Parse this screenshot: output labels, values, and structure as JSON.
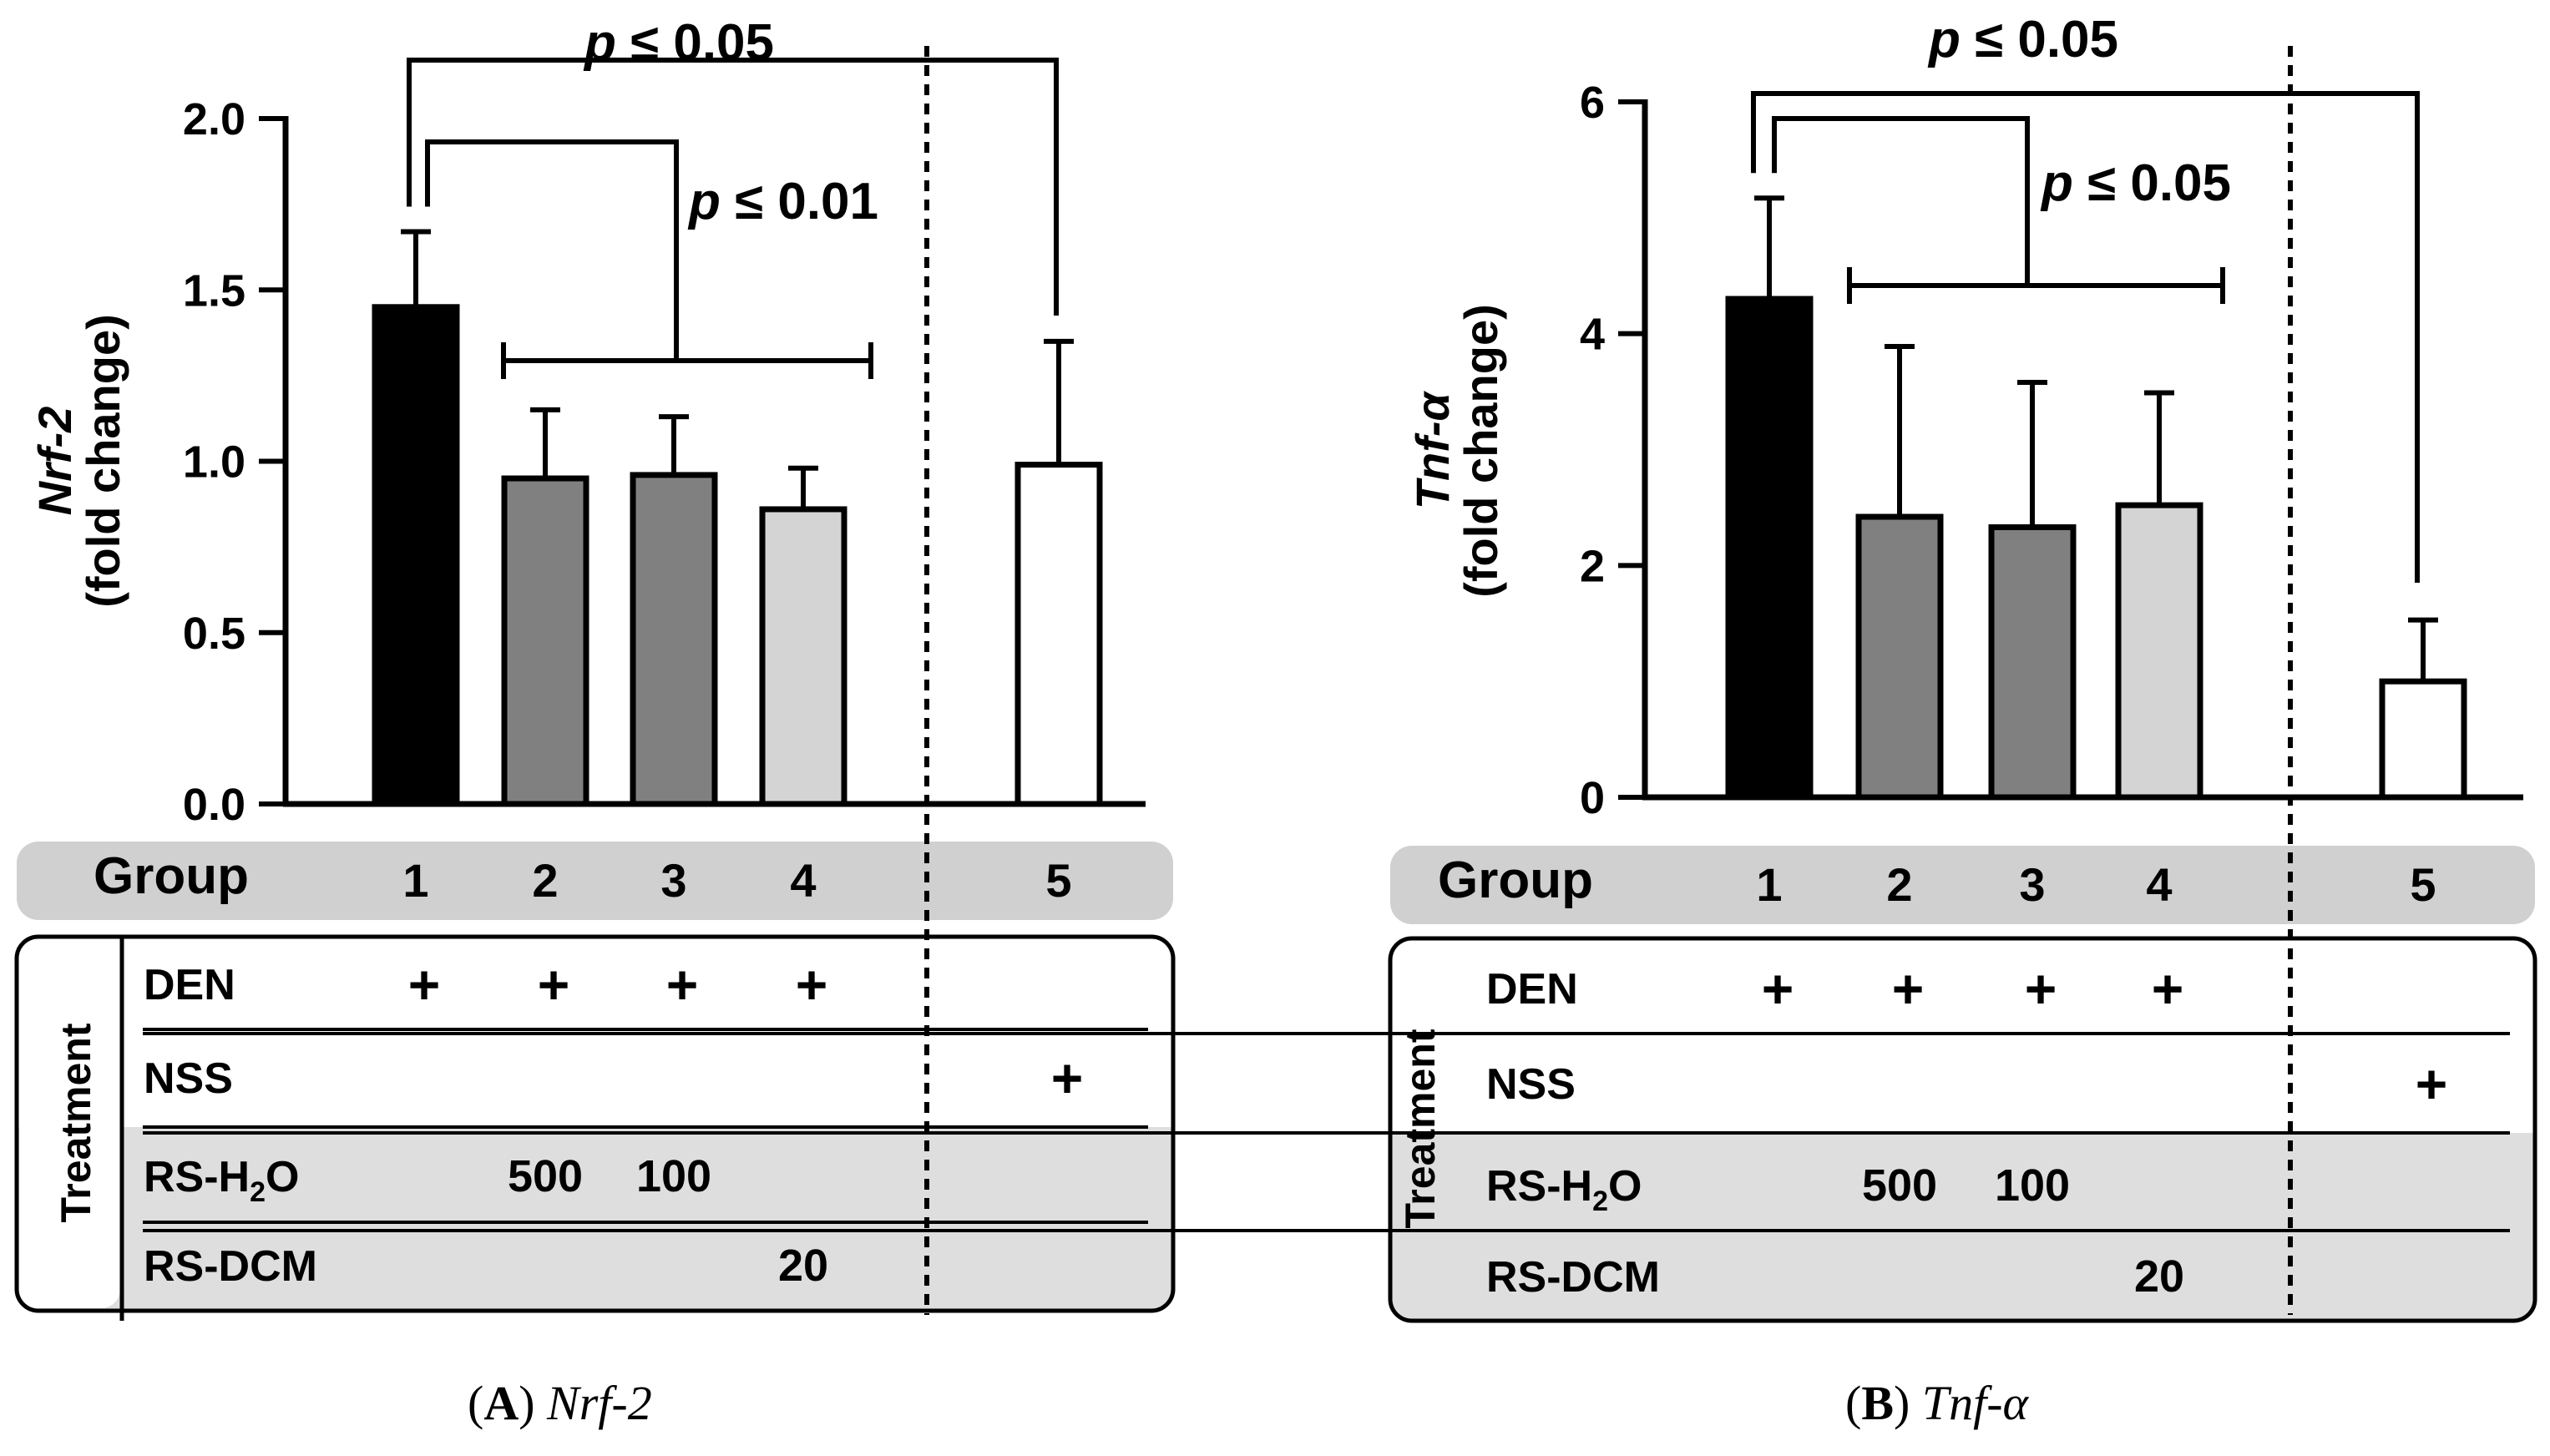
{
  "chart_data": [
    {
      "type": "bar",
      "panel_id": "A",
      "caption_label": "(A)",
      "caption_gene": "Nrf-2",
      "ylabel_gene": "Nrf-2",
      "ylabel_unit": "(fold change)",
      "ylim": [
        0,
        2.0
      ],
      "yticks": [
        0.0,
        0.5,
        1.0,
        1.5,
        2.0
      ],
      "ytick_labels": [
        "0.0",
        "0.5",
        "1.0",
        "1.5",
        "2.0"
      ],
      "categories": [
        "1",
        "2",
        "3",
        "4",
        "5"
      ],
      "values": [
        1.45,
        0.95,
        0.96,
        0.86,
        0.99
      ],
      "errors": [
        0.22,
        0.2,
        0.17,
        0.12,
        0.36
      ],
      "fill_colors": [
        "#000000",
        "#808080",
        "#808080",
        "#d4d4d4",
        "#ffffff"
      ],
      "group_label": "Group",
      "treatment_label": "Treatment",
      "row_labels": [
        "DEN",
        "NSS",
        "RS-H",
        "RS-DCM"
      ],
      "rsh_subscript": "2",
      "rsh_suffix": "O",
      "den_marks": [
        "+",
        "+",
        "+",
        "+",
        ""
      ],
      "nss_marks": [
        "",
        "",
        "",
        "",
        "+"
      ],
      "rsh2o_values": [
        "",
        "500",
        "100",
        "",
        ""
      ],
      "rsdcm_values": [
        "",
        "",
        "",
        "20",
        ""
      ],
      "annotations": [
        {
          "p": "p",
          "text": " ≤ 0.05",
          "between": "1 vs 5"
        },
        {
          "p": "p",
          "text": " ≤ 0.01",
          "between": "1 vs 2–4"
        }
      ]
    },
    {
      "type": "bar",
      "panel_id": "B",
      "caption_label": "(B)",
      "caption_gene": "Tnf-α",
      "ylabel_gene": "Tnf-α",
      "ylabel_unit": "(fold change)",
      "ylim": [
        0,
        6
      ],
      "yticks": [
        0,
        2,
        4,
        6
      ],
      "ytick_labels": [
        "0",
        "2",
        "4",
        "6"
      ],
      "categories": [
        "1",
        "2",
        "3",
        "4",
        "5"
      ],
      "values": [
        4.3,
        2.42,
        2.33,
        2.52,
        1.0
      ],
      "errors": [
        0.87,
        1.47,
        1.25,
        0.97,
        0.53
      ],
      "fill_colors": [
        "#000000",
        "#808080",
        "#808080",
        "#d4d4d4",
        "#ffffff"
      ],
      "group_label": "Group",
      "treatment_label": "Treatment",
      "row_labels": [
        "DEN",
        "NSS",
        "RS-H",
        "RS-DCM"
      ],
      "rsh_subscript": "2",
      "rsh_suffix": "O",
      "den_marks": [
        "+",
        "+",
        "+",
        "+",
        ""
      ],
      "nss_marks": [
        "",
        "",
        "",
        "",
        "+"
      ],
      "rsh2o_values": [
        "",
        "500",
        "100",
        "",
        ""
      ],
      "rsdcm_values": [
        "",
        "",
        "",
        "20",
        ""
      ],
      "annotations": [
        {
          "p": "p",
          "text": " ≤ 0.05",
          "between": "1 vs 5"
        },
        {
          "p": "p",
          "text": " ≤ 0.05",
          "between": "1 vs 2–4"
        }
      ]
    }
  ]
}
